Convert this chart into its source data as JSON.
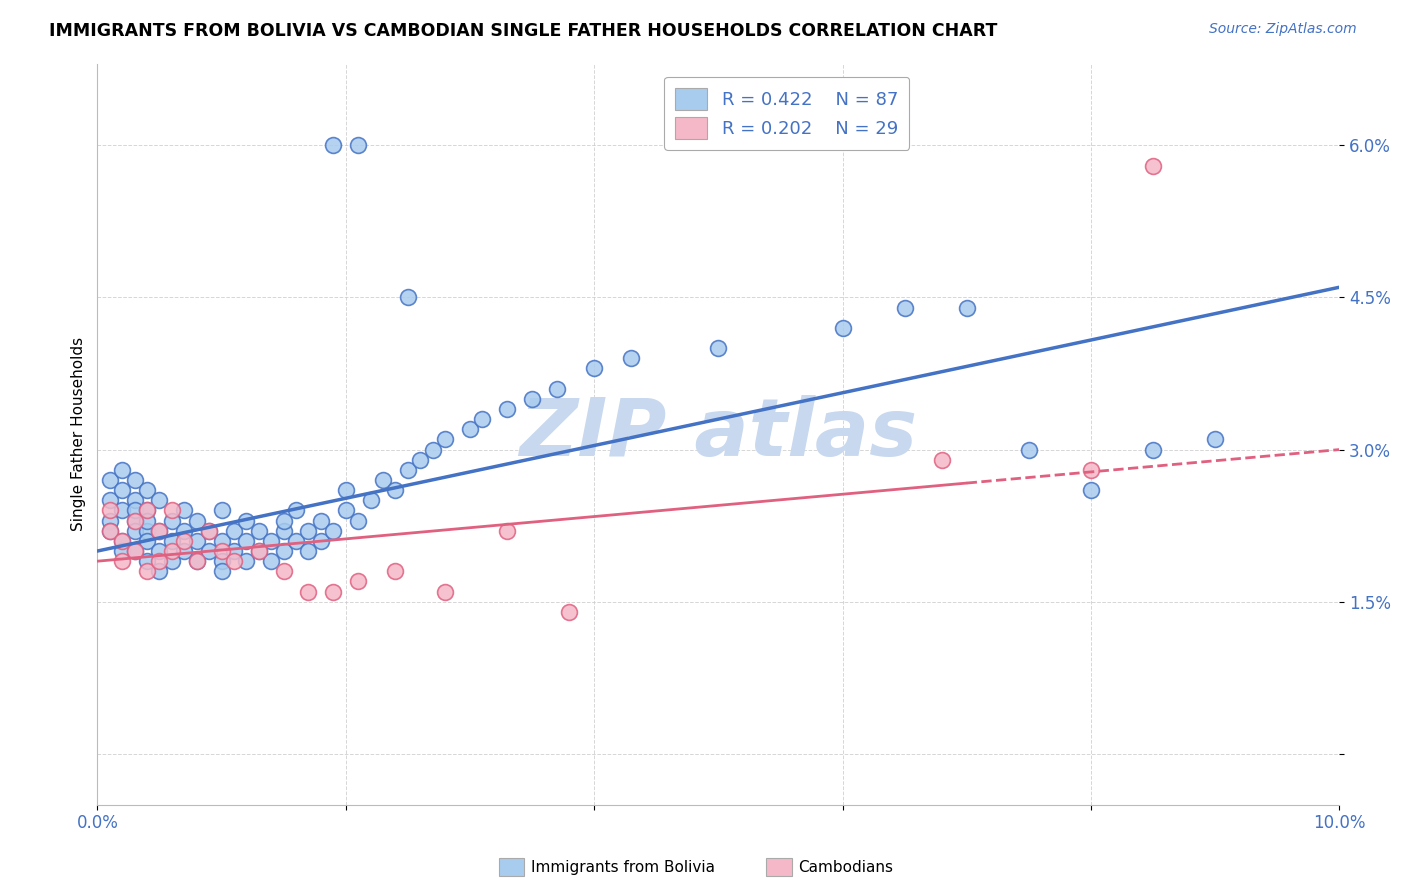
{
  "title": "IMMIGRANTS FROM BOLIVIA VS CAMBODIAN SINGLE FATHER HOUSEHOLDS CORRELATION CHART",
  "source": "Source: ZipAtlas.com",
  "ylabel": "Single Father Households",
  "xlim": [
    0.0,
    0.1
  ],
  "ylim": [
    -0.005,
    0.068
  ],
  "yticks": [
    0.0,
    0.015,
    0.03,
    0.045,
    0.06
  ],
  "ytick_labels": [
    "",
    "1.5%",
    "3.0%",
    "4.5%",
    "6.0%"
  ],
  "xticks": [
    0.0,
    0.02,
    0.04,
    0.06,
    0.08,
    0.1
  ],
  "xtick_labels": [
    "0.0%",
    "",
    "",
    "",
    "",
    "10.0%"
  ],
  "r1": 0.422,
  "n1": 87,
  "r2": 0.202,
  "n2": 29,
  "color_bolivia": "#A8CCEE",
  "color_cambodian": "#F5B8C8",
  "color_line1": "#4472C4",
  "color_line2": "#E06080",
  "color_tick": "#4472C4",
  "watermark_text": "ZIP atlas",
  "watermark_color": "#C8D8EE",
  "line1_y0": 0.02,
  "line1_y1": 0.046,
  "line2_y0": 0.019,
  "line2_y1": 0.03,
  "bolivia_x": [
    0.001,
    0.001,
    0.001,
    0.001,
    0.002,
    0.002,
    0.002,
    0.002,
    0.002,
    0.003,
    0.003,
    0.003,
    0.003,
    0.003,
    0.003,
    0.004,
    0.004,
    0.004,
    0.004,
    0.004,
    0.004,
    0.005,
    0.005,
    0.005,
    0.005,
    0.006,
    0.006,
    0.006,
    0.007,
    0.007,
    0.007,
    0.008,
    0.008,
    0.008,
    0.009,
    0.009,
    0.01,
    0.01,
    0.01,
    0.01,
    0.011,
    0.011,
    0.012,
    0.012,
    0.012,
    0.013,
    0.013,
    0.014,
    0.014,
    0.015,
    0.015,
    0.015,
    0.016,
    0.016,
    0.017,
    0.017,
    0.018,
    0.018,
    0.019,
    0.02,
    0.02,
    0.021,
    0.022,
    0.023,
    0.024,
    0.025,
    0.026,
    0.027,
    0.028,
    0.03,
    0.031,
    0.033,
    0.035,
    0.037,
    0.04,
    0.043,
    0.05,
    0.06,
    0.065,
    0.07,
    0.075,
    0.08,
    0.085,
    0.09,
    0.019,
    0.021,
    0.025
  ],
  "bolivia_y": [
    0.025,
    0.027,
    0.023,
    0.022,
    0.026,
    0.024,
    0.028,
    0.021,
    0.02,
    0.025,
    0.023,
    0.027,
    0.022,
    0.024,
    0.02,
    0.026,
    0.022,
    0.024,
    0.019,
    0.021,
    0.023,
    0.02,
    0.022,
    0.025,
    0.018,
    0.021,
    0.023,
    0.019,
    0.022,
    0.02,
    0.024,
    0.021,
    0.019,
    0.023,
    0.02,
    0.022,
    0.019,
    0.021,
    0.024,
    0.018,
    0.022,
    0.02,
    0.019,
    0.021,
    0.023,
    0.022,
    0.02,
    0.021,
    0.019,
    0.022,
    0.02,
    0.023,
    0.021,
    0.024,
    0.02,
    0.022,
    0.021,
    0.023,
    0.022,
    0.024,
    0.026,
    0.023,
    0.025,
    0.027,
    0.026,
    0.028,
    0.029,
    0.03,
    0.031,
    0.032,
    0.033,
    0.034,
    0.035,
    0.036,
    0.038,
    0.039,
    0.04,
    0.042,
    0.044,
    0.044,
    0.03,
    0.026,
    0.03,
    0.031,
    0.06,
    0.06,
    0.045
  ],
  "cambodian_x": [
    0.001,
    0.001,
    0.002,
    0.002,
    0.003,
    0.003,
    0.004,
    0.004,
    0.005,
    0.005,
    0.006,
    0.006,
    0.007,
    0.008,
    0.009,
    0.01,
    0.011,
    0.013,
    0.015,
    0.017,
    0.019,
    0.021,
    0.024,
    0.028,
    0.033,
    0.038,
    0.068,
    0.08,
    0.085
  ],
  "cambodian_y": [
    0.022,
    0.024,
    0.021,
    0.019,
    0.023,
    0.02,
    0.024,
    0.018,
    0.022,
    0.019,
    0.02,
    0.024,
    0.021,
    0.019,
    0.022,
    0.02,
    0.019,
    0.02,
    0.018,
    0.016,
    0.016,
    0.017,
    0.018,
    0.016,
    0.022,
    0.014,
    0.029,
    0.028,
    0.058
  ]
}
